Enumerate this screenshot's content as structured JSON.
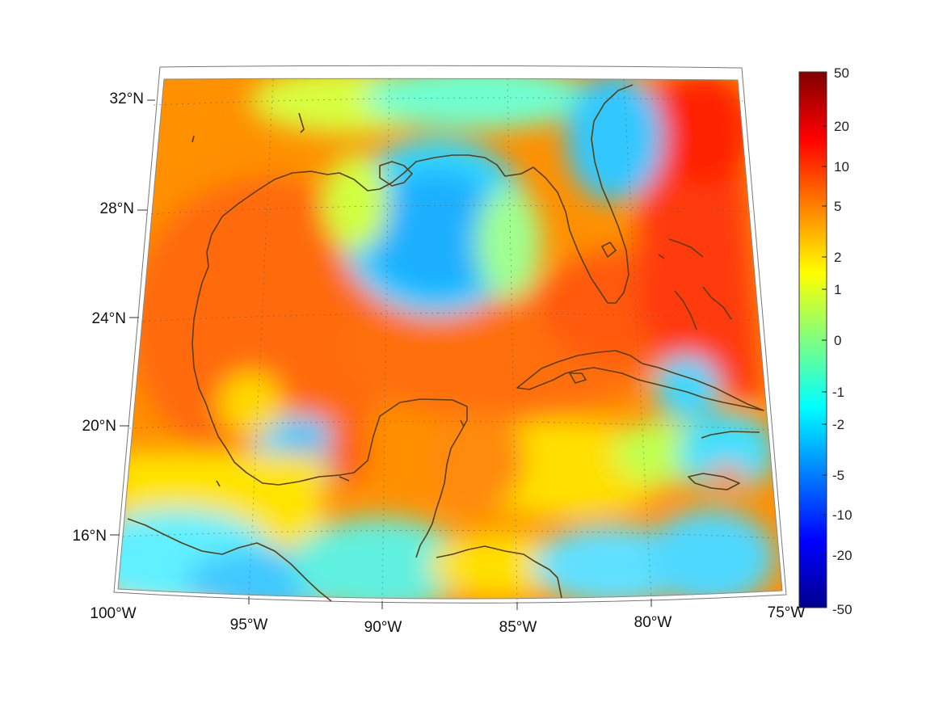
{
  "map": {
    "region": "Gulf of Mexico and western Caribbean",
    "projection": "conic",
    "lon_range": [
      -100,
      -75
    ],
    "lat_range": [
      14,
      33
    ],
    "grid": true,
    "coastline_color": "#5a3e14",
    "lat_labels": [
      "32°N",
      "28°N",
      "24°N",
      "20°N",
      "16°N"
    ],
    "lon_labels": [
      "100°W",
      "95°W",
      "90°W",
      "85°W",
      "80°W",
      "75°W"
    ]
  },
  "colorbar": {
    "colormap": "jet",
    "scale": "symmetric log-like",
    "tick_labels": [
      "50",
      "20",
      "10",
      "5",
      "2",
      "1",
      "0",
      "-1",
      "-2",
      "-5",
      "-10",
      "-20",
      "-50"
    ],
    "range": [
      -50,
      50
    ],
    "placement": "right"
  },
  "field_notes": {
    "high_region": "Atlantic east of Florida and Bahamas (~10)",
    "low_region": "central-north Gulf eddy and Bay of Campeche (~-2 to -5)",
    "background": "warm 2–5 over most of the Gulf and Caribbean"
  }
}
